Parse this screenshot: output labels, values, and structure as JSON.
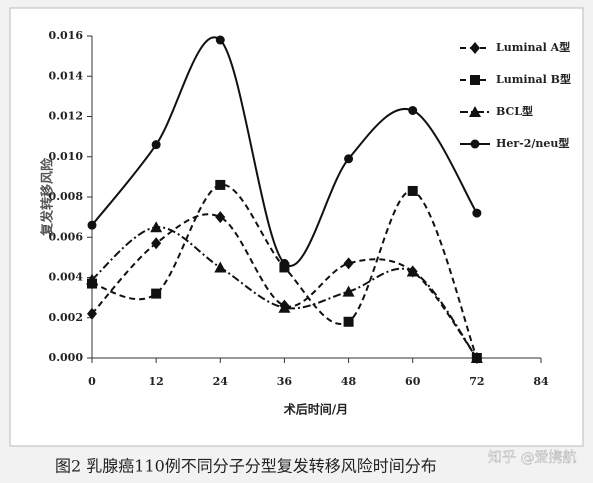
{
  "chart_data": {
    "type": "line",
    "smooth": true,
    "ylabel": "复发转移风险",
    "xlabel": "术后时间/月",
    "caption": "图2   乳腺癌110例不同分子分型复发转移风险时间分布",
    "watermark": "知乎 @爱携航",
    "x": [
      0,
      12,
      24,
      36,
      48,
      60,
      72
    ],
    "xlim": [
      0,
      84
    ],
    "xticks": [
      0,
      12,
      24,
      36,
      48,
      60,
      72,
      84
    ],
    "ylim": [
      0,
      0.016
    ],
    "yticks": [
      {
        "value": 0,
        "label": "0.000"
      },
      {
        "value": 0.002,
        "label": "0.002"
      },
      {
        "value": 0.004,
        "label": "0.004"
      },
      {
        "value": 0.006,
        "label": "0.006"
      },
      {
        "value": 0.008,
        "label": "0.008"
      },
      {
        "value": 0.01,
        "label": "0.010"
      },
      {
        "value": 0.012,
        "label": "0.012"
      },
      {
        "value": 0.014,
        "label": "0.014"
      },
      {
        "value": 0.016,
        "label": "0.016"
      }
    ],
    "legend": "top-right",
    "series": [
      {
        "name": "Luminal A型",
        "color": "#111111",
        "marker": "diamond",
        "dash": "dashed",
        "values": [
          0.0022,
          0.0057,
          0.007,
          0.0026,
          0.0047,
          0.0043,
          0.0
        ]
      },
      {
        "name": "Luminal B型",
        "color": "#111111",
        "marker": "square",
        "dash": "dashed",
        "values": [
          0.0037,
          0.0032,
          0.0086,
          0.0045,
          0.0018,
          0.0083,
          0.0
        ]
      },
      {
        "name": "BCL型",
        "color": "#111111",
        "marker": "triangle",
        "dash": "dashdot",
        "values": [
          0.0039,
          0.0065,
          0.0045,
          0.0025,
          0.0033,
          0.0043,
          0.0
        ]
      },
      {
        "name": "Her-2/neu型",
        "color": "#111111",
        "marker": "circle",
        "dash": "solid",
        "values": [
          0.0066,
          0.0106,
          0.0158,
          0.0047,
          0.0099,
          0.0123,
          0.0072
        ]
      }
    ]
  }
}
